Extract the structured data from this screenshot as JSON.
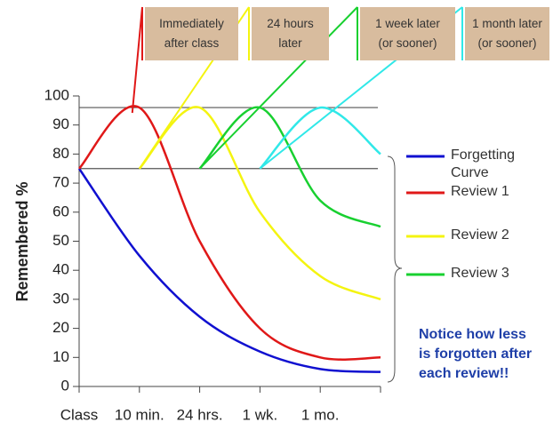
{
  "chart_data": {
    "type": "line",
    "y_label": "Remembered %",
    "categories": [
      "Class",
      "10 min.",
      "24 hrs.",
      "1 wk.",
      "1 mo.",
      null
    ],
    "ylim": [
      0,
      100
    ],
    "yticks": [
      0,
      10,
      20,
      30,
      40,
      50,
      60,
      70,
      80,
      90,
      100
    ],
    "reference_lines": [
      96,
      75
    ],
    "series": [
      {
        "name": "Forgetting Curve",
        "color": "#1010d0",
        "values": [
          75,
          45,
          24,
          12,
          6,
          5
        ]
      },
      {
        "name": "Review 1",
        "color": "#e01818",
        "values": [
          75,
          96,
          50,
          20,
          10,
          10
        ]
      },
      {
        "name": "Review 2",
        "color": "#f4f410",
        "values": [
          null,
          75,
          96,
          60,
          38,
          30
        ]
      },
      {
        "name": "Review 3",
        "color": "#18d030",
        "values": [
          null,
          null,
          75,
          96,
          64,
          55
        ]
      },
      {
        "color": "#30e8e8",
        "values": [
          null,
          null,
          null,
          75,
          96,
          80
        ]
      }
    ],
    "callouts": [
      {
        "lines": [
          "Immediately",
          "after class"
        ]
      },
      {
        "lines": [
          "24 hours",
          "later"
        ]
      },
      {
        "lines": [
          "1 week later",
          "(or sooner)"
        ]
      },
      {
        "lines": [
          "1 month later",
          "(or sooner)"
        ]
      }
    ],
    "annotation": [
      "Notice how less",
      "is forgotten after",
      "each review!!"
    ]
  }
}
